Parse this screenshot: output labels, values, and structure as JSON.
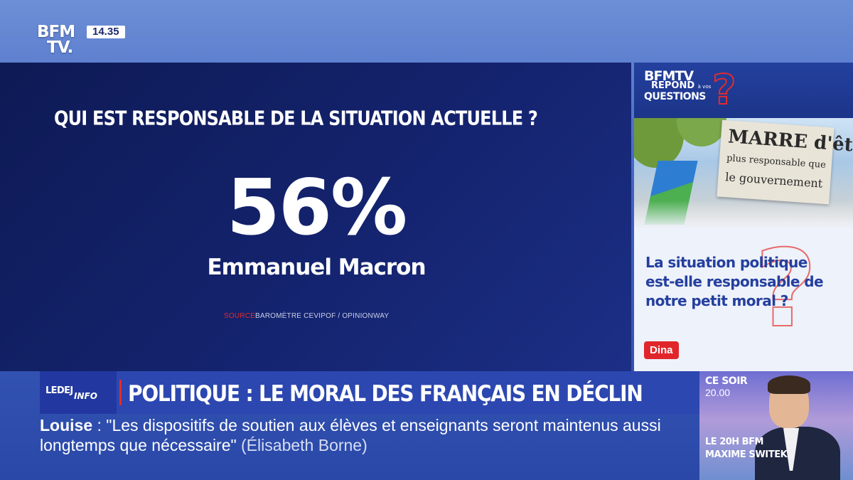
{
  "channel": {
    "logo_line1": "BFM",
    "logo_line2": "TV.",
    "clock": "14.35"
  },
  "main": {
    "question": "QUI EST RESPONSABLE DE LA SITUATION ACTUELLE ?",
    "percent": "56%",
    "person": "Emmanuel Macron",
    "source_label": "SOURCE",
    "source_text": "BAROMÈTRE CEVIPOF / OPINIONWAY"
  },
  "sidebar": {
    "brand_line1": "BFMTV",
    "brand_line2": "REPOND",
    "brand_small": "à vos",
    "brand_line3": "QUESTIONS",
    "sign_line1": "MARRE d'être",
    "sign_line2": "plus responsable que",
    "sign_line3": "le gouvernement",
    "title": "La situation politique est-elle responsable de notre petit moral ?",
    "presenter": "Dina"
  },
  "lower_third": {
    "show_le_dej": "LEDEJ",
    "show_info": "INFO",
    "headline": "POLITIQUE : LE MORAL DES FRANÇAIS EN DÉCLIN"
  },
  "ticker": {
    "name": "Louise",
    "quote": " : \"Les dispositifs de soutien aux élèves et enseignants seront maintenus aussi longtemps que nécessaire\"",
    "author": "  (Élisabeth Borne)"
  },
  "promo": {
    "label": "CE SOIR",
    "time": "20.00",
    "show": "LE 20H BFM",
    "host": "MAXIME SWITEK"
  },
  "colors": {
    "accent_red": "#e32b2b",
    "panel_dark": "#14236e",
    "brand_blue": "#2c47b0"
  }
}
